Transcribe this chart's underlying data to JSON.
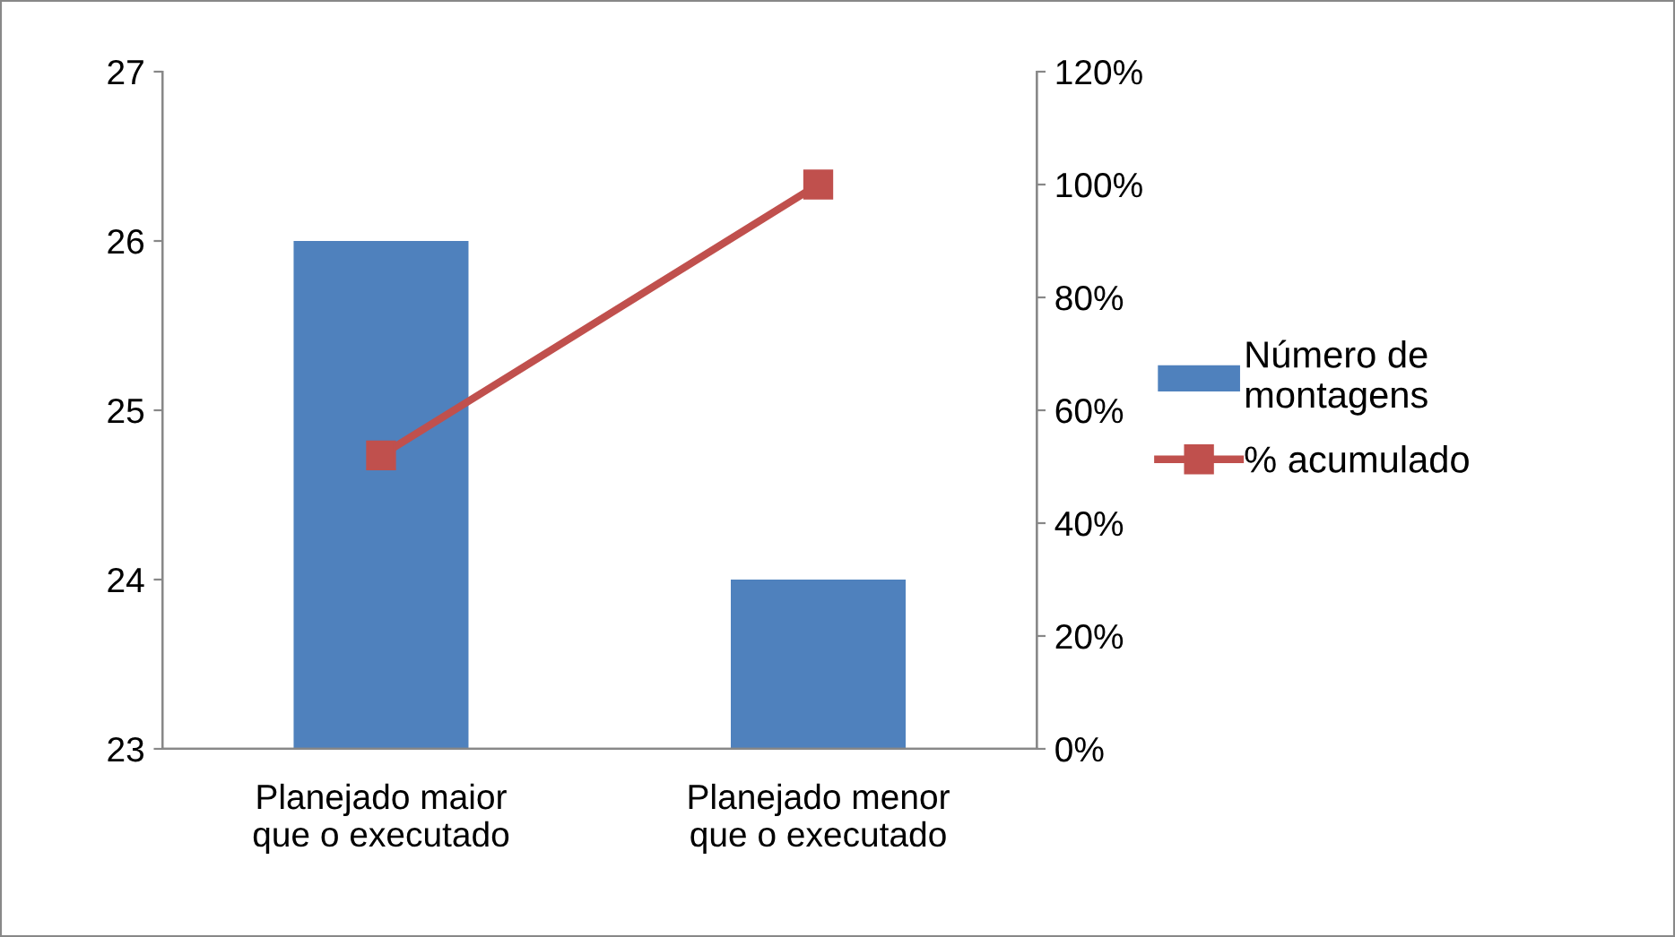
{
  "chart_data": {
    "type": "bar",
    "categories": [
      "Planejado maior\nque o executado",
      "Planejado menor\nque o executado"
    ],
    "series": [
      {
        "name": "Número de\nmontagens",
        "color": "#4f81bd",
        "values": [
          26,
          24
        ]
      },
      {
        "name": "% acumulado",
        "type": "line",
        "axis": "y2",
        "color": "#c0504d",
        "values": [
          52,
          100
        ],
        "marker": "square"
      }
    ],
    "ylim": [
      23,
      27
    ],
    "yticks": [
      23,
      24,
      25,
      26,
      27
    ],
    "y2lim": [
      0,
      120
    ],
    "y2ticks": [
      {
        "value": 0,
        "label": "0%"
      },
      {
        "value": 20,
        "label": "20%"
      },
      {
        "value": 40,
        "label": "40%"
      },
      {
        "value": 60,
        "label": "60%"
      },
      {
        "value": 80,
        "label": "80%"
      },
      {
        "value": 100,
        "label": "100%"
      },
      {
        "value": 120,
        "label": "120%"
      }
    ],
    "grid": false,
    "legend": "right"
  }
}
